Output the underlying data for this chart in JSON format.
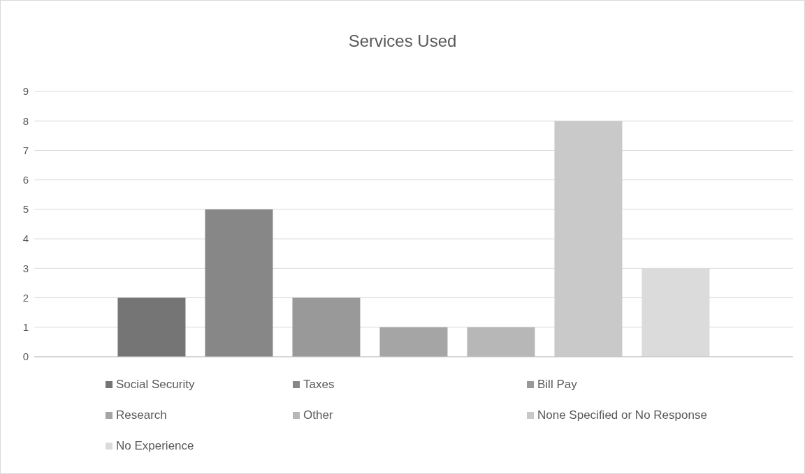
{
  "chart_data": {
    "type": "bar",
    "title": "Services Used",
    "categories": [
      null
    ],
    "series": [
      {
        "name": "Social Security",
        "color": "#757575",
        "values": [
          2
        ]
      },
      {
        "name": "Taxes",
        "color": "#878787",
        "values": [
          5
        ]
      },
      {
        "name": "Bill Pay",
        "color": "#999999",
        "values": [
          2
        ]
      },
      {
        "name": "Research",
        "color": "#a5a5a5",
        "values": [
          1
        ]
      },
      {
        "name": "Other",
        "color": "#b7b7b7",
        "values": [
          1
        ]
      },
      {
        "name": "None Specified or No Response",
        "color": "#c9c9c9",
        "values": [
          8
        ]
      },
      {
        "name": "No Experience",
        "color": "#dbdbdb",
        "values": [
          3
        ]
      }
    ],
    "ylim": [
      0,
      9
    ],
    "yticks": [
      0,
      1,
      2,
      3,
      4,
      5,
      6,
      7,
      8,
      9
    ],
    "grid": "y",
    "legend": "bottom"
  }
}
